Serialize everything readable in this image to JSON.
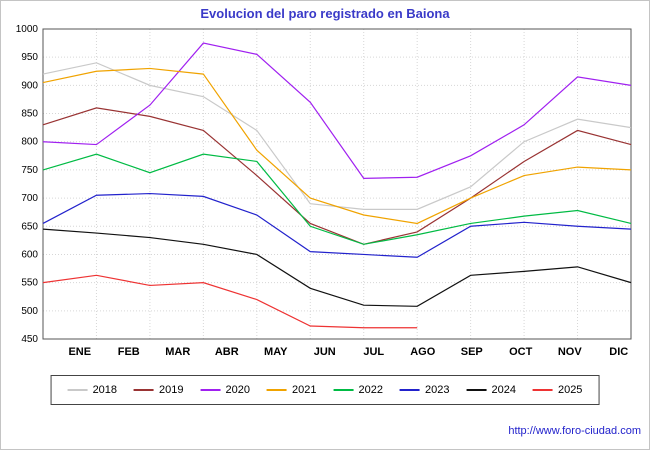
{
  "chart_data": {
    "type": "line",
    "title": "Evolucion del paro registrado en Baiona",
    "categories": [
      "ENE",
      "FEB",
      "MAR",
      "ABR",
      "MAY",
      "JUN",
      "JUL",
      "AGO",
      "SEP",
      "OCT",
      "NOV",
      "DIC"
    ],
    "ylim": [
      450,
      1000
    ],
    "ytick_step": 50,
    "grid": true,
    "legend_position": "bottom",
    "series": [
      {
        "name": "2018",
        "color": "#c9c9c9",
        "values": [
          920,
          940,
          900,
          880,
          820,
          690,
          680,
          680,
          720,
          800,
          840,
          825
        ]
      },
      {
        "name": "2019",
        "color": "#993333",
        "values": [
          830,
          860,
          845,
          820,
          740,
          655,
          618,
          640,
          700,
          765,
          820,
          795
        ]
      },
      {
        "name": "2020",
        "color": "#a020f0",
        "values": [
          800,
          795,
          865,
          975,
          955,
          870,
          735,
          737,
          775,
          830,
          915,
          900
        ]
      },
      {
        "name": "2021",
        "color": "#f0a300",
        "values": [
          905,
          925,
          930,
          920,
          785,
          700,
          670,
          655,
          700,
          740,
          755,
          750
        ]
      },
      {
        "name": "2022",
        "color": "#00bb44",
        "values": [
          750,
          778,
          745,
          778,
          765,
          650,
          618,
          635,
          655,
          668,
          678,
          655
        ]
      },
      {
        "name": "2023",
        "color": "#2222cc",
        "values": [
          655,
          705,
          708,
          703,
          670,
          605,
          600,
          595,
          650,
          657,
          650,
          645
        ]
      },
      {
        "name": "2024",
        "color": "#111111",
        "values": [
          645,
          638,
          630,
          618,
          600,
          540,
          510,
          508,
          563,
          570,
          578,
          550
        ]
      },
      {
        "name": "2025",
        "color": "#ee3333",
        "values": [
          550,
          563,
          545,
          550,
          520,
          473,
          470,
          470
        ]
      }
    ]
  },
  "footer": {
    "url": "http://www.foro-ciudad.com"
  },
  "colors": {
    "title": "#3a3ac8",
    "grid": "#d6d6d6",
    "axis": "#555555"
  }
}
